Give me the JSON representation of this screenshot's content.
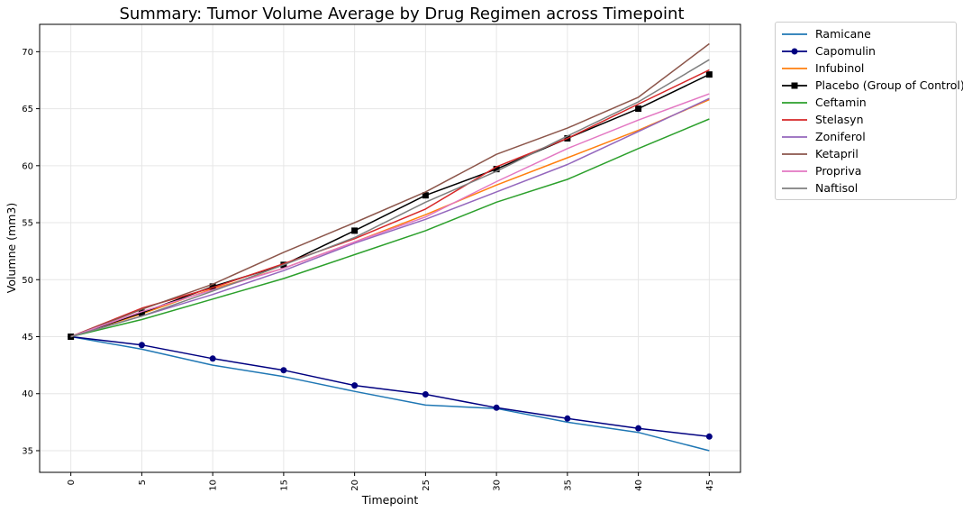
{
  "chart_data": {
    "type": "line",
    "title": "Summary: Tumor Volume Average by Drug Regimen across Timepoint",
    "xlabel": "Timepoint",
    "ylabel": "Volumne (mm3)",
    "x": [
      0,
      5,
      10,
      15,
      20,
      25,
      30,
      35,
      40,
      45
    ],
    "xticks": [
      "0",
      "5",
      "10",
      "15",
      "20",
      "25",
      "30",
      "35",
      "40",
      "45"
    ],
    "yticks": [
      "35",
      "40",
      "45",
      "50",
      "55",
      "60",
      "65",
      "70"
    ],
    "xlim": [
      -2.2,
      47.2
    ],
    "ylim": [
      33.1,
      72.4
    ],
    "grid": true,
    "legend_position": "outside-right",
    "series": [
      {
        "name": "Ramicane",
        "color": "#1f77b4",
        "marker": "none",
        "values": [
          45.0,
          43.9,
          42.5,
          41.5,
          40.2,
          39.0,
          38.7,
          37.5,
          36.6,
          35.0
        ]
      },
      {
        "name": "Capomulin",
        "color": "#000080",
        "marker": "circle",
        "values": [
          45.0,
          44.27,
          43.08,
          42.06,
          40.72,
          39.94,
          38.77,
          37.82,
          36.96,
          36.24
        ]
      },
      {
        "name": "Infubinol",
        "color": "#ff7f0e",
        "marker": "none",
        "values": [
          45.0,
          47.0,
          49.2,
          51.0,
          53.3,
          55.7,
          58.3,
          60.7,
          63.1,
          65.8
        ]
      },
      {
        "name": "Placebo (Group of Control)",
        "color": "#000000",
        "marker": "square",
        "values": [
          45.0,
          47.1,
          49.4,
          51.3,
          54.3,
          57.4,
          59.7,
          62.4,
          65.0,
          68.0
        ]
      },
      {
        "name": "Ceftamin",
        "color": "#2ca02c",
        "marker": "none",
        "values": [
          45.0,
          46.5,
          48.3,
          50.1,
          52.2,
          54.3,
          56.8,
          58.8,
          61.5,
          64.1
        ]
      },
      {
        "name": "Stelasyn",
        "color": "#d62728",
        "marker": "none",
        "values": [
          45.0,
          47.5,
          49.3,
          51.4,
          53.6,
          56.2,
          59.9,
          62.4,
          65.4,
          68.4
        ]
      },
      {
        "name": "Zoniferol",
        "color": "#9467bd",
        "marker": "none",
        "values": [
          45.0,
          46.8,
          48.7,
          50.8,
          53.2,
          55.3,
          57.7,
          60.1,
          63.0,
          65.9
        ]
      },
      {
        "name": "Ketapril",
        "color": "#8c564b",
        "marker": "none",
        "values": [
          45.0,
          47.4,
          49.6,
          52.4,
          55.0,
          57.7,
          61.0,
          63.3,
          66.0,
          70.7
        ]
      },
      {
        "name": "Propriva",
        "color": "#e377c2",
        "marker": "none",
        "values": [
          45.0,
          47.2,
          49.1,
          51.0,
          53.3,
          55.5,
          58.6,
          61.5,
          64.0,
          66.3
        ]
      },
      {
        "name": "Naftisol",
        "color": "#7f7f7f",
        "marker": "none",
        "values": [
          45.0,
          46.8,
          49.0,
          51.3,
          53.7,
          56.8,
          59.5,
          62.6,
          65.6,
          69.3
        ]
      }
    ]
  }
}
